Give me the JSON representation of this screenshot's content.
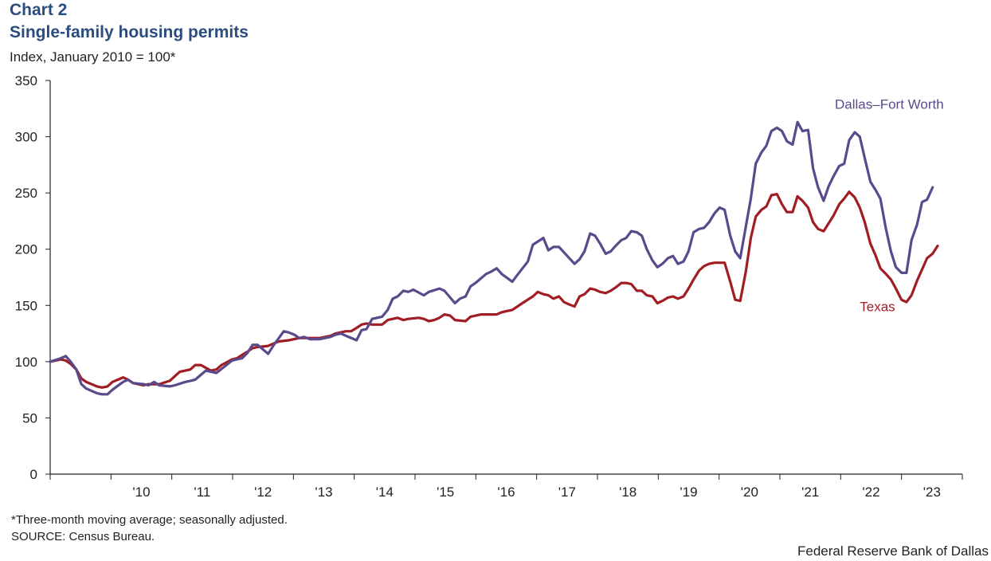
{
  "header": {
    "chart_number": "Chart 2",
    "title": "Single-family housing permits",
    "y_unit": "Index, January 2010 = 100*"
  },
  "footer": {
    "note": "*Three-month moving average; seasonally adjusted.",
    "source": "SOURCE: Census Bureau.",
    "credit": "Federal Reserve Bank of Dallas"
  },
  "chart_data": {
    "type": "line",
    "title": "Single-family housing permits",
    "ylabel": "Index, January 2010 = 100*",
    "xlabel": "",
    "ylim": [
      0,
      350
    ],
    "yticks": [
      0,
      50,
      100,
      150,
      200,
      250,
      300,
      350
    ],
    "xlim": [
      2010.0,
      2023.9
    ],
    "x_tick_labels": [
      "'10",
      "'11",
      "'12",
      "'13",
      "'14",
      "'15",
      "'16",
      "'17",
      "'18",
      "'19",
      "'20",
      "'21",
      "'22",
      "'23"
    ],
    "grid": false,
    "series": [
      {
        "name": "Dallas–Fort Worth",
        "color": "#5b4a8b",
        "points": [
          [
            2010.0,
            100
          ],
          [
            2010.17,
            103
          ],
          [
            2010.25,
            105
          ],
          [
            2010.33,
            100
          ],
          [
            2010.42,
            93
          ],
          [
            2010.5,
            80
          ],
          [
            2010.58,
            76
          ],
          [
            2010.75,
            72
          ],
          [
            2010.83,
            71
          ],
          [
            2010.92,
            71
          ],
          [
            2011.0,
            75
          ],
          [
            2011.17,
            82
          ],
          [
            2011.25,
            84
          ],
          [
            2011.33,
            81
          ],
          [
            2011.5,
            80
          ],
          [
            2011.58,
            79
          ],
          [
            2011.67,
            82
          ],
          [
            2011.75,
            79
          ],
          [
            2011.92,
            78
          ],
          [
            2012.0,
            79
          ],
          [
            2012.17,
            82
          ],
          [
            2012.25,
            83
          ],
          [
            2012.33,
            84
          ],
          [
            2012.5,
            92
          ],
          [
            2012.67,
            90
          ],
          [
            2012.83,
            97
          ],
          [
            2012.92,
            101
          ],
          [
            2013.0,
            102
          ],
          [
            2013.08,
            103
          ],
          [
            2013.17,
            108
          ],
          [
            2013.25,
            115
          ],
          [
            2013.33,
            115
          ],
          [
            2013.5,
            107
          ],
          [
            2013.58,
            114
          ],
          [
            2013.75,
            127
          ],
          [
            2013.83,
            126
          ],
          [
            2013.92,
            124
          ],
          [
            2014.0,
            121
          ],
          [
            2014.08,
            122
          ],
          [
            2014.17,
            120
          ],
          [
            2014.33,
            120
          ],
          [
            2014.5,
            122
          ],
          [
            2014.58,
            124
          ],
          [
            2014.67,
            125
          ],
          [
            2014.75,
            123
          ],
          [
            2014.92,
            119
          ],
          [
            2015.0,
            128
          ],
          [
            2015.08,
            129
          ],
          [
            2015.17,
            138
          ],
          [
            2015.33,
            140
          ],
          [
            2015.42,
            146
          ],
          [
            2015.5,
            156
          ],
          [
            2015.58,
            158
          ],
          [
            2015.67,
            163
          ],
          [
            2015.75,
            162
          ],
          [
            2015.83,
            164
          ],
          [
            2016.0,
            159
          ],
          [
            2016.08,
            162
          ],
          [
            2016.25,
            165
          ],
          [
            2016.33,
            163
          ],
          [
            2016.5,
            152
          ],
          [
            2016.58,
            156
          ],
          [
            2016.67,
            158
          ],
          [
            2016.75,
            167
          ],
          [
            2016.83,
            170
          ],
          [
            2017.0,
            178
          ],
          [
            2017.08,
            180
          ],
          [
            2017.17,
            183
          ],
          [
            2017.25,
            178
          ],
          [
            2017.42,
            171
          ],
          [
            2017.5,
            177
          ],
          [
            2017.67,
            189
          ],
          [
            2017.75,
            204
          ],
          [
            2017.92,
            210
          ],
          [
            2018.0,
            199
          ],
          [
            2018.08,
            202
          ],
          [
            2018.17,
            202
          ],
          [
            2018.42,
            187
          ],
          [
            2018.5,
            191
          ],
          [
            2018.58,
            198
          ],
          [
            2018.67,
            214
          ],
          [
            2018.75,
            212
          ],
          [
            2018.83,
            205
          ],
          [
            2018.92,
            196
          ],
          [
            2019.0,
            198
          ],
          [
            2019.08,
            203
          ],
          [
            2019.17,
            208
          ],
          [
            2019.25,
            210
          ],
          [
            2019.33,
            216
          ],
          [
            2019.42,
            215
          ],
          [
            2019.5,
            212
          ],
          [
            2019.58,
            200
          ],
          [
            2019.67,
            190
          ],
          [
            2019.75,
            184
          ],
          [
            2019.83,
            187
          ],
          [
            2019.92,
            192
          ],
          [
            2020.0,
            194
          ],
          [
            2020.08,
            187
          ],
          [
            2020.17,
            189
          ],
          [
            2020.25,
            198
          ],
          [
            2020.33,
            215
          ],
          [
            2020.42,
            218
          ],
          [
            2020.5,
            219
          ],
          [
            2020.58,
            224
          ],
          [
            2020.67,
            232
          ],
          [
            2020.75,
            237
          ],
          [
            2020.83,
            235
          ],
          [
            2020.92,
            212
          ],
          [
            2021.0,
            198
          ],
          [
            2021.08,
            192
          ],
          [
            2021.17,
            220
          ],
          [
            2021.25,
            245
          ],
          [
            2021.33,
            276
          ],
          [
            2021.42,
            286
          ],
          [
            2021.5,
            292
          ],
          [
            2021.58,
            305
          ],
          [
            2021.67,
            308
          ],
          [
            2021.75,
            305
          ],
          [
            2021.83,
            296
          ],
          [
            2021.92,
            293
          ],
          [
            2022.0,
            313
          ],
          [
            2022.08,
            305
          ],
          [
            2022.17,
            306
          ],
          [
            2022.25,
            272
          ],
          [
            2022.33,
            255
          ],
          [
            2022.42,
            243
          ],
          [
            2022.5,
            256
          ],
          [
            2022.58,
            265
          ],
          [
            2022.67,
            274
          ],
          [
            2022.75,
            276
          ],
          [
            2022.83,
            297
          ],
          [
            2022.92,
            304
          ],
          [
            2023.0,
            300
          ],
          [
            2023.08,
            281
          ],
          [
            2023.17,
            260
          ],
          [
            2023.25,
            253
          ],
          [
            2023.33,
            245
          ],
          [
            2023.42,
            218
          ],
          [
            2023.5,
            198
          ],
          [
            2023.58,
            184
          ],
          [
            2023.67,
            179
          ],
          [
            2023.75,
            179
          ],
          [
            2023.83,
            208
          ],
          [
            2023.92,
            222
          ],
          [
            2024.0,
            242
          ],
          [
            2024.08,
            244
          ],
          [
            2024.17,
            255
          ]
        ]
      },
      {
        "name": "Texas",
        "color": "#a11d24",
        "points": [
          [
            2010.0,
            100
          ],
          [
            2010.17,
            102
          ],
          [
            2010.25,
            101
          ],
          [
            2010.33,
            98
          ],
          [
            2010.42,
            93
          ],
          [
            2010.5,
            85
          ],
          [
            2010.58,
            82
          ],
          [
            2010.75,
            78
          ],
          [
            2010.83,
            77
          ],
          [
            2010.92,
            78
          ],
          [
            2011.0,
            82
          ],
          [
            2011.17,
            86
          ],
          [
            2011.25,
            84
          ],
          [
            2011.33,
            81
          ],
          [
            2011.5,
            79
          ],
          [
            2011.58,
            80
          ],
          [
            2011.67,
            80
          ],
          [
            2011.75,
            80
          ],
          [
            2011.92,
            83
          ],
          [
            2012.0,
            87
          ],
          [
            2012.08,
            91
          ],
          [
            2012.17,
            92
          ],
          [
            2012.25,
            93
          ],
          [
            2012.33,
            97
          ],
          [
            2012.42,
            97
          ],
          [
            2012.58,
            92
          ],
          [
            2012.67,
            93
          ],
          [
            2012.75,
            97
          ],
          [
            2012.92,
            102
          ],
          [
            2013.0,
            103
          ],
          [
            2013.08,
            106
          ],
          [
            2013.17,
            109
          ],
          [
            2013.25,
            112
          ],
          [
            2013.33,
            113
          ],
          [
            2013.5,
            114
          ],
          [
            2013.58,
            116
          ],
          [
            2013.67,
            118
          ],
          [
            2013.83,
            119
          ],
          [
            2014.0,
            121
          ],
          [
            2014.08,
            121
          ],
          [
            2014.17,
            121
          ],
          [
            2014.33,
            121
          ],
          [
            2014.5,
            123
          ],
          [
            2014.58,
            125
          ],
          [
            2014.75,
            127
          ],
          [
            2014.83,
            127
          ],
          [
            2014.92,
            130
          ],
          [
            2015.0,
            133
          ],
          [
            2015.08,
            134
          ],
          [
            2015.17,
            133
          ],
          [
            2015.33,
            133
          ],
          [
            2015.42,
            137
          ],
          [
            2015.58,
            139
          ],
          [
            2015.67,
            137
          ],
          [
            2015.75,
            138
          ],
          [
            2015.92,
            139
          ],
          [
            2016.0,
            138
          ],
          [
            2016.08,
            136
          ],
          [
            2016.17,
            137
          ],
          [
            2016.25,
            139
          ],
          [
            2016.33,
            142
          ],
          [
            2016.42,
            141
          ],
          [
            2016.5,
            137
          ],
          [
            2016.67,
            136
          ],
          [
            2016.75,
            140
          ],
          [
            2016.92,
            142
          ],
          [
            2017.0,
            142
          ],
          [
            2017.08,
            142
          ],
          [
            2017.17,
            142
          ],
          [
            2017.25,
            144
          ],
          [
            2017.42,
            146
          ],
          [
            2017.58,
            152
          ],
          [
            2017.75,
            158
          ],
          [
            2017.83,
            162
          ],
          [
            2017.92,
            160
          ],
          [
            2018.0,
            159
          ],
          [
            2018.08,
            156
          ],
          [
            2018.17,
            158
          ],
          [
            2018.25,
            153
          ],
          [
            2018.33,
            151
          ],
          [
            2018.42,
            149
          ],
          [
            2018.5,
            158
          ],
          [
            2018.58,
            160
          ],
          [
            2018.67,
            165
          ],
          [
            2018.75,
            164
          ],
          [
            2018.83,
            162
          ],
          [
            2018.92,
            161
          ],
          [
            2019.0,
            163
          ],
          [
            2019.08,
            166
          ],
          [
            2019.17,
            170
          ],
          [
            2019.25,
            170
          ],
          [
            2019.33,
            169
          ],
          [
            2019.42,
            163
          ],
          [
            2019.5,
            163
          ],
          [
            2019.58,
            159
          ],
          [
            2019.67,
            158
          ],
          [
            2019.75,
            152
          ],
          [
            2019.83,
            154
          ],
          [
            2019.92,
            157
          ],
          [
            2020.0,
            158
          ],
          [
            2020.08,
            156
          ],
          [
            2020.17,
            158
          ],
          [
            2020.25,
            165
          ],
          [
            2020.33,
            173
          ],
          [
            2020.42,
            181
          ],
          [
            2020.5,
            185
          ],
          [
            2020.58,
            187
          ],
          [
            2020.67,
            188
          ],
          [
            2020.75,
            188
          ],
          [
            2020.83,
            188
          ],
          [
            2020.92,
            171
          ],
          [
            2021.0,
            155
          ],
          [
            2021.08,
            154
          ],
          [
            2021.17,
            180
          ],
          [
            2021.25,
            210
          ],
          [
            2021.33,
            229
          ],
          [
            2021.42,
            235
          ],
          [
            2021.5,
            238
          ],
          [
            2021.58,
            248
          ],
          [
            2021.67,
            249
          ],
          [
            2021.75,
            240
          ],
          [
            2021.83,
            233
          ],
          [
            2021.92,
            233
          ],
          [
            2022.0,
            247
          ],
          [
            2022.08,
            243
          ],
          [
            2022.17,
            237
          ],
          [
            2022.25,
            224
          ],
          [
            2022.33,
            218
          ],
          [
            2022.42,
            216
          ],
          [
            2022.5,
            223
          ],
          [
            2022.58,
            230
          ],
          [
            2022.67,
            240
          ],
          [
            2022.75,
            245
          ],
          [
            2022.83,
            251
          ],
          [
            2022.92,
            246
          ],
          [
            2023.0,
            237
          ],
          [
            2023.08,
            224
          ],
          [
            2023.17,
            205
          ],
          [
            2023.25,
            195
          ],
          [
            2023.33,
            183
          ],
          [
            2023.42,
            178
          ],
          [
            2023.5,
            173
          ],
          [
            2023.58,
            165
          ],
          [
            2023.67,
            155
          ],
          [
            2023.75,
            153
          ],
          [
            2023.83,
            159
          ],
          [
            2023.92,
            172
          ],
          [
            2024.0,
            182
          ],
          [
            2024.08,
            192
          ],
          [
            2024.17,
            196
          ],
          [
            2024.25,
            203
          ]
        ]
      }
    ],
    "annotations": [
      {
        "text": "Dallas–Fort Worth",
        "series": 0,
        "x": 2022.6,
        "y": 325
      },
      {
        "text": "Texas",
        "series": 1,
        "x": 2023.0,
        "y": 145
      }
    ]
  }
}
